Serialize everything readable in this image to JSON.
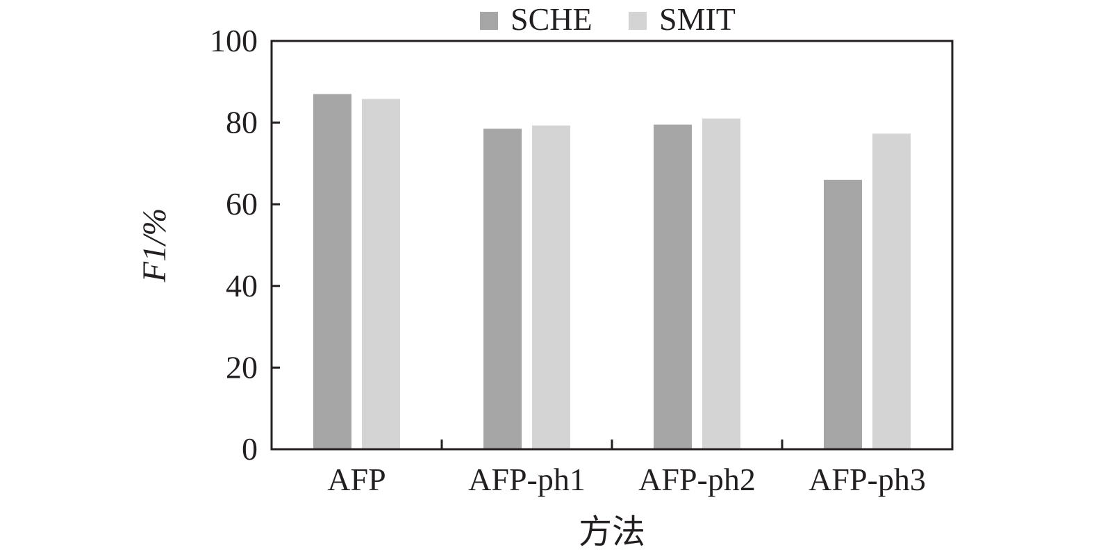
{
  "chart_data": {
    "type": "bar",
    "title": "",
    "xlabel": "方法",
    "ylabel": "F1/%",
    "ylim": [
      0,
      100
    ],
    "yticks": [
      0,
      20,
      40,
      60,
      80,
      100
    ],
    "categories": [
      "AFP",
      "AFP-ph1",
      "AFP-ph2",
      "AFP-ph3"
    ],
    "series": [
      {
        "name": "SCHE",
        "color": "#a7a6a6",
        "values": [
          87.0,
          78.5,
          79.5,
          66.0
        ]
      },
      {
        "name": "SMIT",
        "color": "#d4d4d4",
        "values": [
          85.8,
          79.3,
          81.0,
          77.3
        ]
      }
    ],
    "legend_position": "top-center",
    "grid": false
  }
}
